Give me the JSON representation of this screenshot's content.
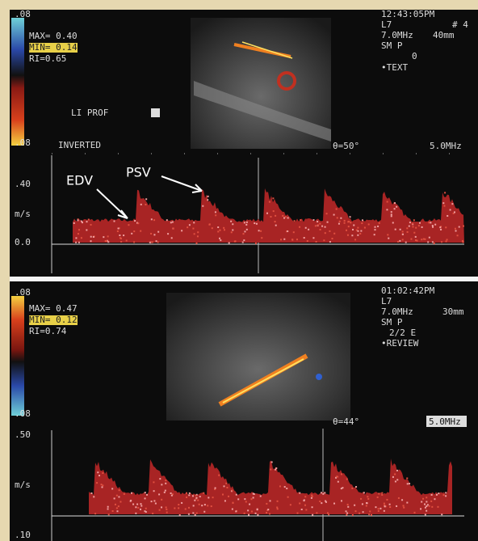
{
  "top": {
    "scale_top": ".08",
    "max": "MAX= 0.40",
    "min": "MIN= 0.14",
    "ri": "RI=0.65",
    "li_prof": "LI PROF",
    "scale_bottom": ".08",
    "mode": "INVERTED",
    "time": "12:43:05PM",
    "probe": "L7",
    "frame": "# 4",
    "freq": "7.0MHz",
    "depth": "40mm",
    "preset": "SM P",
    "persist": "0",
    "note": "•TEXT",
    "angle": "θ=50°",
    "doppler_freq": "5.0MHz",
    "axis_top": ".40",
    "axis_unit": "m/s",
    "axis_bottom": "0.0",
    "edv": "EDV",
    "psv": "PSV"
  },
  "bottom": {
    "scale_top": ".08",
    "max": "MAX= 0.47",
    "min": "MIN= 0.12",
    "ri": "RI=0.74",
    "scale_bottom": ".08",
    "time": "01:02:42PM",
    "probe": "L7",
    "freq": "7.0MHz",
    "depth": "30mm",
    "preset": "SM P",
    "persist": "2/2 E",
    "note": "•REVIEW",
    "angle": "θ=44°",
    "doppler_freq": "5.0MHz",
    "axis_top": ".50",
    "axis_unit": "m/s",
    "axis_bottom": ".10"
  }
}
